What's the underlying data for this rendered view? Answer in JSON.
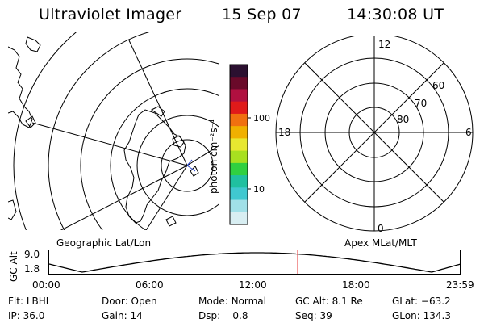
{
  "header": {
    "instrument": "Ultraviolet Imager",
    "date": "15 Sep 07",
    "time": "14:30:08 UT"
  },
  "colorbar": {
    "unit_label": "photon cm⁻²s⁻¹",
    "tick_100": "100",
    "tick_10": "10",
    "colors_top_to_bottom": [
      "#2b1030",
      "#6a0a2a",
      "#b01040",
      "#e01a1a",
      "#f07010",
      "#f0b000",
      "#e8e830",
      "#a8e020",
      "#30d040",
      "#20c0a0",
      "#40c8d0",
      "#a0e0e8",
      "#d8eef2"
    ]
  },
  "left_map": {
    "label": "Geographic Lat/Lon"
  },
  "right_map": {
    "label": "Apex MLat/MLT",
    "mlt_top": "12",
    "mlt_left": "18",
    "mlt_right": "6",
    "mlt_bottom": "0",
    "lat_60": "60",
    "lat_70": "70",
    "lat_80": "80"
  },
  "timeline": {
    "ylabel": "GC Alt",
    "ymax": "9.0",
    "ymin": "1.8",
    "ticks": [
      "00:00",
      "06:00",
      "12:00",
      "18:00",
      "23:59"
    ],
    "current_time_fraction": 0.6043,
    "marker_color": "#e00000"
  },
  "info": {
    "flt_label": "Flt:",
    "flt_value": "LBHL",
    "door_label": "Door:",
    "door_value": "Open",
    "mode_label": "Mode:",
    "mode_value": "Normal",
    "gcalt_label": "GC Alt:",
    "gcalt_value": "8.1 Re",
    "glat_label": "GLat:",
    "glat_value": "−63.2",
    "ip_label": "IP:",
    "ip_value": "36.0",
    "gain_label": "Gain:",
    "gain_value": "14",
    "dsp_label": "Dsp:",
    "dsp_value": "0.8",
    "seq_label": "Seq:",
    "seq_value": "39",
    "glon_label": "GLon:",
    "glon_value": "134.3"
  }
}
